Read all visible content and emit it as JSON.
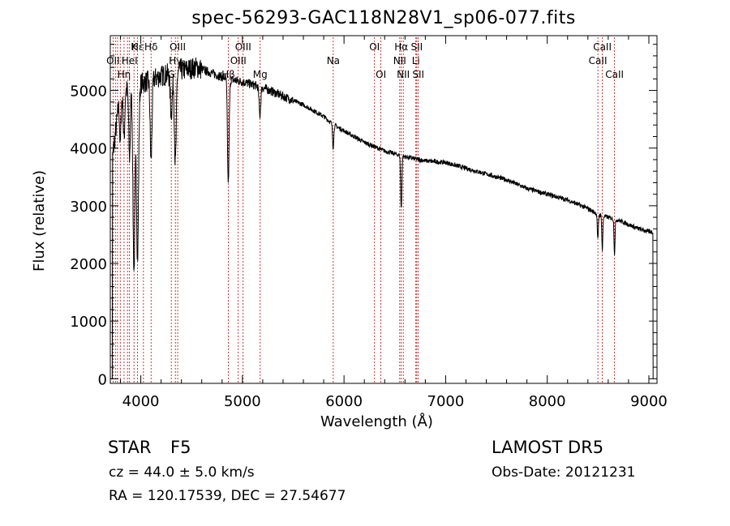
{
  "title": "spec-56293-GAC118N28V1_sp06-077.fits",
  "footer": {
    "object_class": "STAR",
    "subclass": "F5",
    "survey": "LAMOST DR5",
    "cz": "cz = 44.0 ± 5.0 km/s",
    "obs_date": "Obs-Date: 20121231",
    "radec": "RA = 120.17539, DEC =  27.54677"
  },
  "chart_data": {
    "type": "line",
    "xlabel": "Wavelength (Å)",
    "ylabel": "Flux (relative)",
    "xlim": [
      3700,
      9080
    ],
    "ylim": [
      -80,
      5950
    ],
    "xticks": [
      4000,
      5000,
      6000,
      7000,
      8000,
      9000
    ],
    "xtick_labels": [
      "4000",
      "5000",
      "6000",
      "7000",
      "8000",
      "9000"
    ],
    "yticks": [
      0,
      1000,
      2000,
      3000,
      4000,
      5000
    ],
    "ytick_labels": [
      "0",
      "1000",
      "2000",
      "3000",
      "4000",
      "5000"
    ],
    "series": [
      {
        "color": "#000000",
        "continuum": [
          [
            3700,
            3500
          ],
          [
            3780,
            4700
          ],
          [
            3850,
            5000
          ],
          [
            3950,
            5100
          ],
          [
            4050,
            5150
          ],
          [
            4200,
            5250
          ],
          [
            4400,
            5350
          ],
          [
            4550,
            5400
          ],
          [
            4700,
            5300
          ],
          [
            4850,
            5200
          ],
          [
            5000,
            5150
          ],
          [
            5200,
            5050
          ],
          [
            5400,
            4900
          ],
          [
            5600,
            4750
          ],
          [
            5800,
            4550
          ],
          [
            5900,
            4400
          ],
          [
            6000,
            4300
          ],
          [
            6200,
            4100
          ],
          [
            6400,
            3950
          ],
          [
            6600,
            3850
          ],
          [
            6800,
            3780
          ],
          [
            7000,
            3750
          ],
          [
            7200,
            3650
          ],
          [
            7400,
            3550
          ],
          [
            7600,
            3450
          ],
          [
            7800,
            3300
          ],
          [
            8000,
            3200
          ],
          [
            8200,
            3100
          ],
          [
            8400,
            2950
          ],
          [
            8500,
            2850
          ],
          [
            8700,
            2750
          ],
          [
            8900,
            2600
          ],
          [
            9000,
            2550
          ]
        ],
        "absorption_features": [
          {
            "x": 3933,
            "depth": 3200,
            "width": 10
          },
          {
            "x": 3968,
            "depth": 3000,
            "width": 10
          },
          {
            "x": 3889,
            "depth": 1200,
            "width": 8
          },
          {
            "x": 3835,
            "depth": 800,
            "width": 7
          },
          {
            "x": 3798,
            "depth": 700,
            "width": 6
          },
          {
            "x": 4101,
            "depth": 1400,
            "width": 9
          },
          {
            "x": 4340,
            "depth": 1600,
            "width": 9
          },
          {
            "x": 4300,
            "depth": 700,
            "width": 10
          },
          {
            "x": 4861,
            "depth": 1800,
            "width": 8
          },
          {
            "x": 5172,
            "depth": 500,
            "width": 8
          },
          {
            "x": 5893,
            "depth": 400,
            "width": 6
          },
          {
            "x": 6563,
            "depth": 900,
            "width": 6
          },
          {
            "x": 8498,
            "depth": 450,
            "width": 5
          },
          {
            "x": 8542,
            "depth": 600,
            "width": 5
          },
          {
            "x": 8662,
            "depth": 600,
            "width": 5
          }
        ]
      }
    ],
    "line_markers": [
      {
        "x": 3727,
        "label": "OII",
        "row": 2
      },
      {
        "x": 3750,
        "label": "",
        "row": 0
      },
      {
        "x": 3771,
        "label": "",
        "row": 0
      },
      {
        "x": 3798,
        "label": "",
        "row": 0
      },
      {
        "x": 3835,
        "label": "Hη",
        "row": 3
      },
      {
        "x": 3869,
        "label": "",
        "row": 0
      },
      {
        "x": 3889,
        "label": "HeI",
        "row": 2
      },
      {
        "x": 3933,
        "label": "K",
        "row": 1
      },
      {
        "x": 3968,
        "label": "Hε",
        "row": 1
      },
      {
        "x": 4026,
        "label": "",
        "row": 0
      },
      {
        "x": 4101,
        "label": "Hδ",
        "row": 1
      },
      {
        "x": 4300,
        "label": "G",
        "row": 3
      },
      {
        "x": 4340,
        "label": "Hγ",
        "row": 2
      },
      {
        "x": 4363,
        "label": "OIII",
        "row": 1
      },
      {
        "x": 4861,
        "label": "Hβ",
        "row": 3
      },
      {
        "x": 4959,
        "label": "OIII",
        "row": 2
      },
      {
        "x": 5007,
        "label": "OIII",
        "row": 1
      },
      {
        "x": 5175,
        "label": "Mg",
        "row": 3
      },
      {
        "x": 5894,
        "label": "Na",
        "row": 2
      },
      {
        "x": 6300,
        "label": "OI",
        "row": 1
      },
      {
        "x": 6363,
        "label": "OI",
        "row": 3
      },
      {
        "x": 6548,
        "label": "NII",
        "row": 2
      },
      {
        "x": 6563,
        "label": "Hα",
        "row": 1
      },
      {
        "x": 6583,
        "label": "NII",
        "row": 3
      },
      {
        "x": 6707,
        "label": "Li",
        "row": 2
      },
      {
        "x": 6716,
        "label": "SII",
        "row": 1
      },
      {
        "x": 6731,
        "label": "SII",
        "row": 3
      },
      {
        "x": 8498,
        "label": "CaII",
        "row": 2
      },
      {
        "x": 8542,
        "label": "CaII",
        "row": 1
      },
      {
        "x": 8662,
        "label": "CaII",
        "row": 3
      }
    ]
  }
}
